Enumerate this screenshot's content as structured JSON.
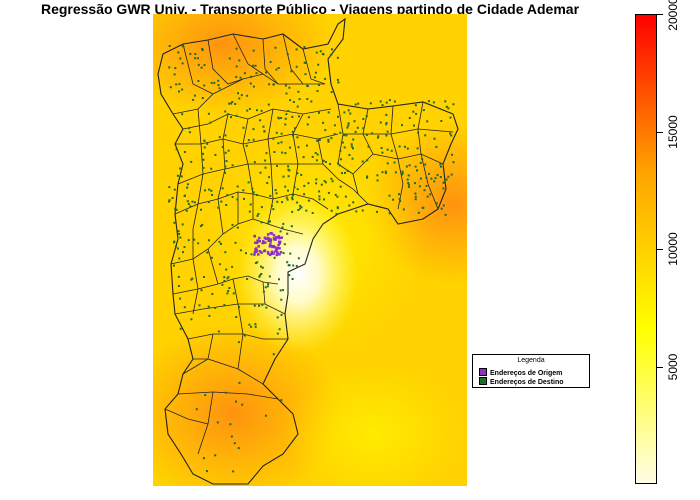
{
  "title": "Regressão GWR Univ. - Transporte Público - Viagens partindo de Cidade Ademar",
  "legend": {
    "title": "Legenda",
    "items": [
      {
        "label": "Endereços de Origem",
        "color": "#8b2fc9"
      },
      {
        "label": "Endereços de Destino",
        "color": "#1f6b2a"
      }
    ]
  },
  "colorbar": {
    "min": 0,
    "max": 20000,
    "ticks": [
      "5000",
      "10000",
      "15000",
      "20000"
    ],
    "tick_values": [
      5000,
      10000,
      15000,
      20000
    ],
    "colors": [
      "#fffde6",
      "#ffff00",
      "#ffa500",
      "#ff0000"
    ]
  },
  "map_colors": {
    "base": "#ffd200",
    "hot": "#ff9a1a",
    "cold": "#ffffe6",
    "outline": "#222222"
  }
}
